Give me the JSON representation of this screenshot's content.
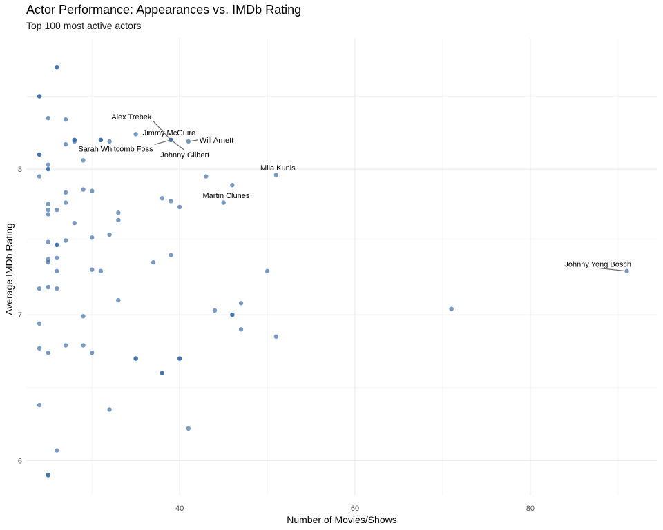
{
  "chart_data": {
    "type": "scatter",
    "title": "Actor Performance: Appearances vs. IMDb Rating",
    "subtitle": "Top 100 most active actors",
    "xlabel": "Number of Movies/Shows",
    "ylabel": "Average IMDb Rating",
    "xlim": [
      22.5,
      94.5
    ],
    "ylim": [
      5.76,
      8.9
    ],
    "x_ticks": [
      40,
      60,
      80
    ],
    "y_ticks": [
      6,
      7,
      8
    ],
    "grid": true,
    "color": "#2e62a1",
    "points": [
      {
        "x": 26,
        "y": 8.7
      },
      {
        "x": 26,
        "y": 8.7
      },
      {
        "x": 24,
        "y": 8.5
      },
      {
        "x": 24,
        "y": 8.5
      },
      {
        "x": 25,
        "y": 8.35
      },
      {
        "x": 27,
        "y": 8.34
      },
      {
        "x": 28,
        "y": 8.2
      },
      {
        "x": 28,
        "y": 8.2
      },
      {
        "x": 28,
        "y": 8.19
      },
      {
        "x": 27,
        "y": 8.17
      },
      {
        "x": 31,
        "y": 8.2
      },
      {
        "x": 31,
        "y": 8.2
      },
      {
        "x": 32,
        "y": 8.19
      },
      {
        "x": 35,
        "y": 8.24
      },
      {
        "x": 39,
        "y": 8.2
      },
      {
        "x": 39,
        "y": 8.2
      },
      {
        "x": 41,
        "y": 8.19
      },
      {
        "x": 24,
        "y": 8.1
      },
      {
        "x": 24,
        "y": 8.1
      },
      {
        "x": 29,
        "y": 8.06
      },
      {
        "x": 25,
        "y": 8.03
      },
      {
        "x": 25,
        "y": 8.0
      },
      {
        "x": 25,
        "y": 8.0
      },
      {
        "x": 24,
        "y": 7.95
      },
      {
        "x": 43,
        "y": 7.95
      },
      {
        "x": 51,
        "y": 7.96
      },
      {
        "x": 46,
        "y": 7.89
      },
      {
        "x": 27,
        "y": 7.84
      },
      {
        "x": 29,
        "y": 7.86
      },
      {
        "x": 30,
        "y": 7.85
      },
      {
        "x": 38,
        "y": 7.8
      },
      {
        "x": 39,
        "y": 7.78
      },
      {
        "x": 45,
        "y": 7.77
      },
      {
        "x": 40,
        "y": 7.74
      },
      {
        "x": 27,
        "y": 7.77
      },
      {
        "x": 25,
        "y": 7.76
      },
      {
        "x": 25,
        "y": 7.72
      },
      {
        "x": 25,
        "y": 7.69
      },
      {
        "x": 26,
        "y": 7.72
      },
      {
        "x": 33,
        "y": 7.7
      },
      {
        "x": 33,
        "y": 7.65
      },
      {
        "x": 28,
        "y": 7.63
      },
      {
        "x": 32,
        "y": 7.55
      },
      {
        "x": 30,
        "y": 7.53
      },
      {
        "x": 27,
        "y": 7.51
      },
      {
        "x": 25,
        "y": 7.5
      },
      {
        "x": 26,
        "y": 7.48
      },
      {
        "x": 26,
        "y": 7.48
      },
      {
        "x": 39,
        "y": 7.41
      },
      {
        "x": 26,
        "y": 7.39
      },
      {
        "x": 25,
        "y": 7.38
      },
      {
        "x": 25,
        "y": 7.36
      },
      {
        "x": 37,
        "y": 7.36
      },
      {
        "x": 30,
        "y": 7.31
      },
      {
        "x": 31,
        "y": 7.3
      },
      {
        "x": 26,
        "y": 7.3
      },
      {
        "x": 50,
        "y": 7.3
      },
      {
        "x": 91,
        "y": 7.3
      },
      {
        "x": 24,
        "y": 7.18
      },
      {
        "x": 25,
        "y": 7.19
      },
      {
        "x": 26,
        "y": 7.18
      },
      {
        "x": 33,
        "y": 7.1
      },
      {
        "x": 47,
        "y": 7.08
      },
      {
        "x": 44,
        "y": 7.03
      },
      {
        "x": 71,
        "y": 7.04
      },
      {
        "x": 46,
        "y": 7.0
      },
      {
        "x": 46,
        "y": 7.0
      },
      {
        "x": 29,
        "y": 6.99
      },
      {
        "x": 24,
        "y": 6.94
      },
      {
        "x": 47,
        "y": 6.9
      },
      {
        "x": 51,
        "y": 6.85
      },
      {
        "x": 27,
        "y": 6.79
      },
      {
        "x": 29,
        "y": 6.79
      },
      {
        "x": 24,
        "y": 6.77
      },
      {
        "x": 25,
        "y": 6.74
      },
      {
        "x": 30,
        "y": 6.74
      },
      {
        "x": 35,
        "y": 6.7
      },
      {
        "x": 35,
        "y": 6.7
      },
      {
        "x": 40,
        "y": 6.7
      },
      {
        "x": 40,
        "y": 6.7
      },
      {
        "x": 38,
        "y": 6.6
      },
      {
        "x": 38,
        "y": 6.6
      },
      {
        "x": 24,
        "y": 6.38
      },
      {
        "x": 32,
        "y": 6.35
      },
      {
        "x": 41,
        "y": 6.22
      },
      {
        "x": 26,
        "y": 6.07
      },
      {
        "x": 25,
        "y": 5.9
      },
      {
        "x": 25,
        "y": 5.9
      }
    ],
    "annotations": [
      {
        "label": "Alex Trebek",
        "x": 39,
        "y": 8.2,
        "lx": 34.5,
        "ly": 8.36,
        "anchor": "middle"
      },
      {
        "label": "Jimmy McGuire",
        "x": 39,
        "y": 8.2,
        "lx": 38.8,
        "ly": 8.25,
        "anchor": "middle"
      },
      {
        "label": "Will Arnett",
        "x": 41,
        "y": 8.19,
        "lx": 44.2,
        "ly": 8.2,
        "anchor": "middle"
      },
      {
        "label": "Sarah Whitcomb Foss",
        "x": 39,
        "y": 8.2,
        "lx": 32.7,
        "ly": 8.14,
        "anchor": "middle"
      },
      {
        "label": "Johnny Gilbert",
        "x": 39,
        "y": 8.2,
        "lx": 40.6,
        "ly": 8.1,
        "anchor": "middle"
      },
      {
        "label": "Mila Kunis",
        "x": 51,
        "y": 7.96,
        "lx": 51.2,
        "ly": 8.01,
        "anchor": "middle"
      },
      {
        "label": "Martin Clunes",
        "x": 45,
        "y": 7.77,
        "lx": 45.3,
        "ly": 7.82,
        "anchor": "middle"
      },
      {
        "label": "Johnny Yong Bosch",
        "x": 91,
        "y": 7.3,
        "lx": 87.7,
        "ly": 7.35,
        "anchor": "middle"
      }
    ]
  }
}
